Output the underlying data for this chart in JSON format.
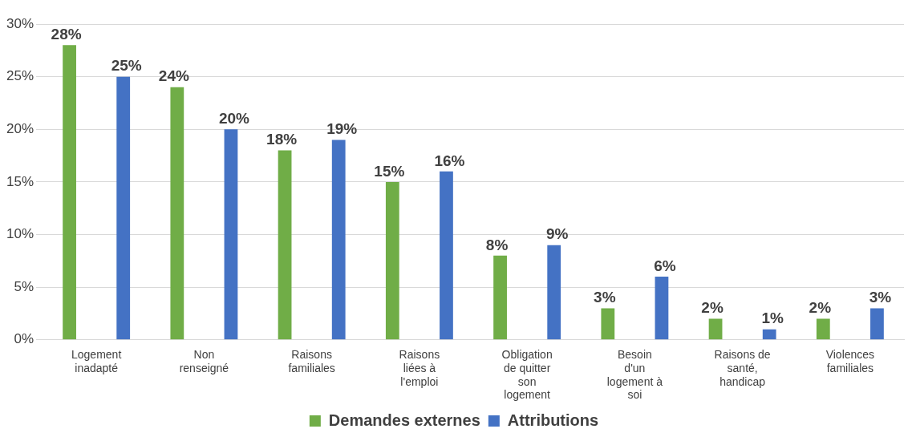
{
  "chart_data": {
    "type": "bar",
    "categories": [
      "Logement inadapté",
      "Non renseigné",
      "Raisons familiales",
      "Raisons liées à l'emploi",
      "Obligation de quitter son logement",
      "Besoin d'un logement à soi",
      "Raisons de santé, handicap",
      "Violences familiales"
    ],
    "series": [
      {
        "name": "Demandes externes",
        "color": "#70ad47",
        "values": [
          28,
          24,
          18,
          15,
          8,
          3,
          2,
          2
        ],
        "value_labels": [
          "28%",
          "24%",
          "18%",
          "15%",
          "8%",
          "3%",
          "2%",
          "2%"
        ]
      },
      {
        "name": "Attributions",
        "color": "#4472c4",
        "values": [
          25,
          20,
          19,
          16,
          9,
          6,
          1,
          3
        ],
        "value_labels": [
          "25%",
          "20%",
          "19%",
          "16%",
          "9%",
          "6%",
          "1%",
          "3%"
        ]
      }
    ],
    "ylim": [
      0,
      30
    ],
    "yticks": [
      {
        "value": 0,
        "label": "0%"
      },
      {
        "value": 5,
        "label": "5%"
      },
      {
        "value": 10,
        "label": "10%"
      },
      {
        "value": 15,
        "label": "15%"
      },
      {
        "value": 20,
        "label": "20%"
      },
      {
        "value": 25,
        "label": "25%"
      },
      {
        "value": 30,
        "label": "30%"
      }
    ],
    "grid": "y",
    "legend": "bottom"
  }
}
